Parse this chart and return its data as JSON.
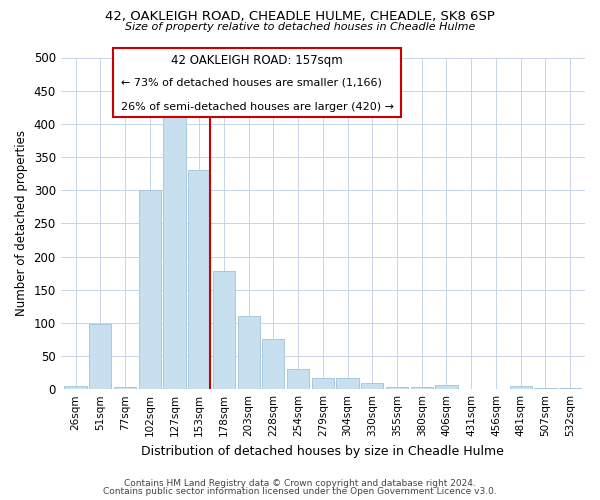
{
  "title_line1": "42, OAKLEIGH ROAD, CHEADLE HULME, CHEADLE, SK8 6SP",
  "title_line2": "Size of property relative to detached houses in Cheadle Hulme",
  "xlabel": "Distribution of detached houses by size in Cheadle Hulme",
  "ylabel": "Number of detached properties",
  "bin_labels": [
    "26sqm",
    "51sqm",
    "77sqm",
    "102sqm",
    "127sqm",
    "153sqm",
    "178sqm",
    "203sqm",
    "228sqm",
    "254sqm",
    "279sqm",
    "304sqm",
    "330sqm",
    "355sqm",
    "380sqm",
    "406sqm",
    "431sqm",
    "456sqm",
    "481sqm",
    "507sqm",
    "532sqm"
  ],
  "bar_heights": [
    5,
    98,
    3,
    300,
    410,
    330,
    178,
    110,
    75,
    30,
    17,
    17,
    9,
    3,
    3,
    6,
    0,
    0,
    5,
    2,
    2
  ],
  "bar_color": "#c8dff0",
  "bar_edge_color": "#a8c8e0",
  "marker_label": "42 OAKLEIGH ROAD: 157sqm",
  "annotation_line1": "← 73% of detached houses are smaller (1,166)",
  "annotation_line2": "26% of semi-detached houses are larger (420) →",
  "annotation_box_color": "#ffffff",
  "annotation_box_edge": "#cc0000",
  "marker_line_color": "#cc0000",
  "ylim": [
    0,
    500
  ],
  "yticks": [
    0,
    50,
    100,
    150,
    200,
    250,
    300,
    350,
    400,
    450,
    500
  ],
  "footer1": "Contains HM Land Registry data © Crown copyright and database right 2024.",
  "footer2": "Contains public sector information licensed under the Open Government Licence v3.0.",
  "background_color": "#ffffff",
  "grid_color": "#c8d4e8"
}
